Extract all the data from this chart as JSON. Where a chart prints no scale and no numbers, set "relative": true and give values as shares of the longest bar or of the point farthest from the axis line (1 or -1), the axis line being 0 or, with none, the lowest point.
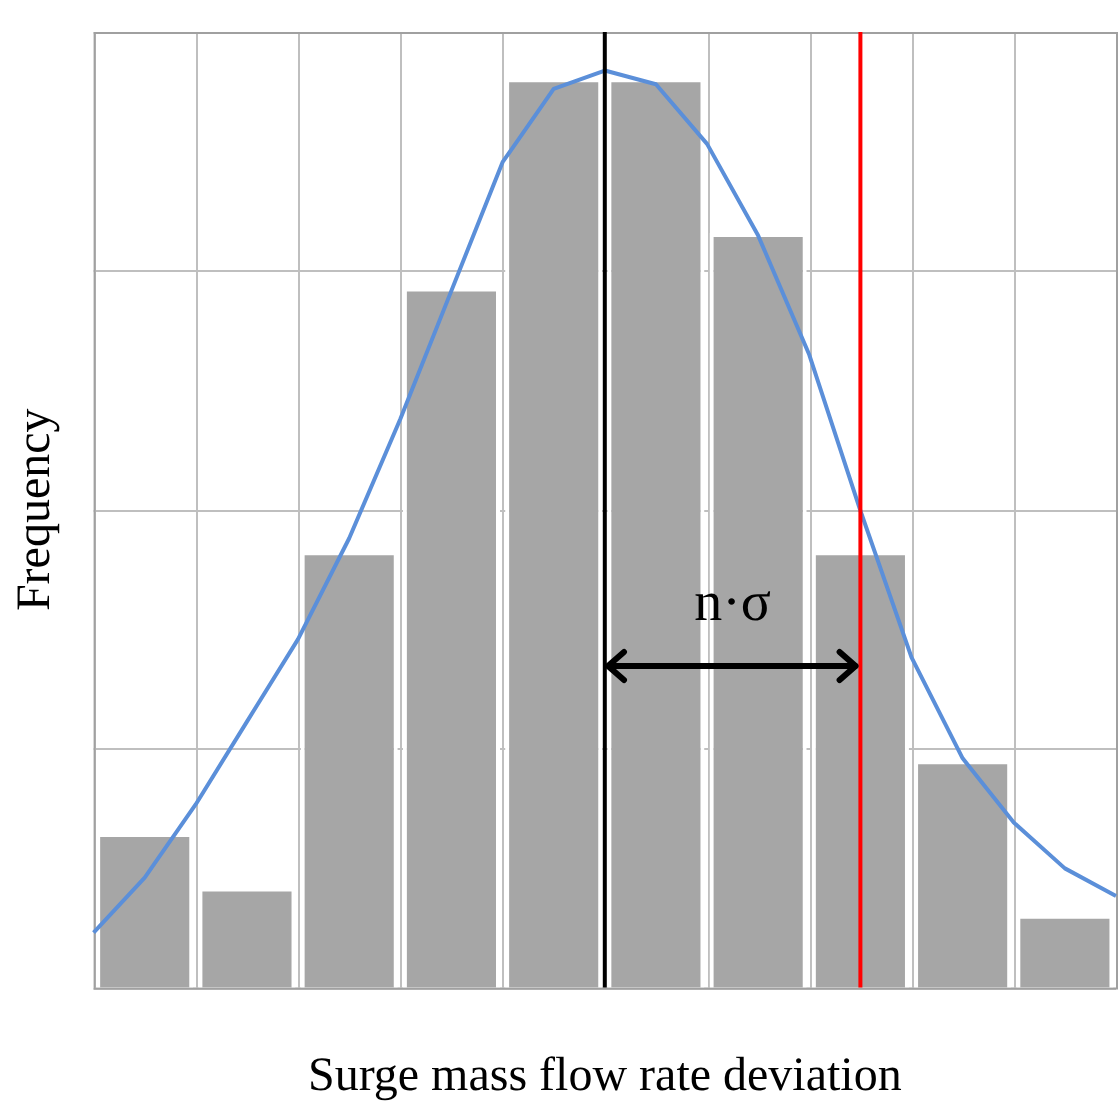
{
  "chart_data": [
    {
      "type": "bar",
      "relative": true,
      "xlabel": "Surge mass flow rate deviation",
      "ylabel": "Frequency",
      "categories": [
        null,
        null,
        null,
        null,
        null,
        null,
        null,
        null,
        null,
        null
      ],
      "grid": true,
      "legend": false,
      "series": [
        {
          "color": "#a6a6a6",
          "values": [
            0.17,
            0.11,
            0.48,
            0.77,
            1,
            1,
            0.83,
            0.48,
            0.25,
            0.08
          ]
        }
      ]
    },
    {
      "type": "line",
      "relative": true,
      "categories": [
        null,
        null,
        null,
        null,
        null,
        null,
        null,
        null,
        null,
        null,
        null,
        null,
        null,
        null,
        null,
        null,
        null,
        null,
        null,
        null,
        null
      ],
      "legend": false,
      "marker": "none",
      "series": [
        {
          "color": "#5b8fd9",
          "values": [
            0.06,
            0.12,
            0.2,
            0.29,
            0.38,
            0.49,
            0.62,
            0.76,
            0.9,
            0.98,
            1.0,
            0.985,
            0.92,
            0.82,
            0.69,
            0.52,
            0.36,
            0.25,
            0.18,
            0.13,
            0.1
          ]
        }
      ],
      "annotations": [
        "n·σ"
      ]
    }
  ]
}
